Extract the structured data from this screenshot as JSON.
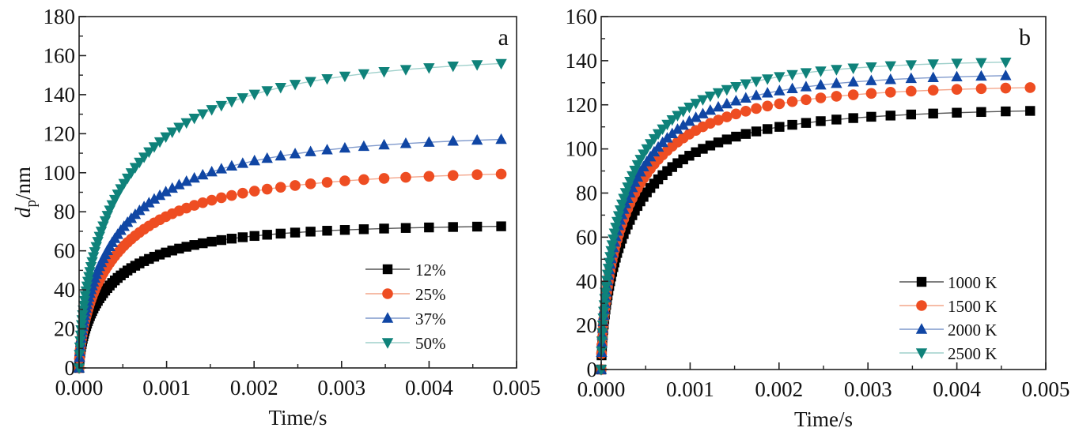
{
  "chart_data": [
    {
      "type": "line",
      "panel_label": "a",
      "title": "",
      "xlabel": "Time/s",
      "ylabel": "d_p/nm",
      "ylabel_parts": {
        "main": "d",
        "sub": "p",
        "unit": "/nm"
      },
      "xlim": [
        0,
        0.005
      ],
      "ylim": [
        0,
        180
      ],
      "xticks": [
        "0.000",
        "0.001",
        "0.002",
        "0.003",
        "0.004",
        "0.005"
      ],
      "yticks": [
        "0",
        "20",
        "40",
        "60",
        "80",
        "100",
        "120",
        "140",
        "160",
        "180"
      ],
      "grid": false,
      "legend_position": "bottom-right",
      "series": [
        {
          "name": "12%",
          "color": "#000000",
          "line_color": "#555555",
          "marker": "square",
          "plateau": 73.5,
          "tau": 0.00045,
          "t_end": 0.00495
        },
        {
          "name": "25%",
          "color": "#ee4d22",
          "line_color": "#f4a58a",
          "marker": "circle",
          "plateau": 101.5,
          "tau": 0.00055,
          "t_end": 0.00495
        },
        {
          "name": "37%",
          "color": "#1046a4",
          "line_color": "#7f99cc",
          "marker": "triangle-up",
          "plateau": 120,
          "tau": 0.00058,
          "t_end": 0.00505
        },
        {
          "name": "50%",
          "color": "#0f827a",
          "line_color": "#9fd0cb",
          "marker": "triangle-down",
          "plateau": 160.5,
          "tau": 0.00062,
          "t_end": 0.00505
        }
      ]
    },
    {
      "type": "line",
      "panel_label": "b",
      "title": "",
      "xlabel": "Time/s",
      "ylabel": "",
      "xlim": [
        0,
        0.005
      ],
      "ylim": [
        0,
        160
      ],
      "xticks": [
        "0.000",
        "0.001",
        "0.002",
        "0.003",
        "0.004",
        "0.005"
      ],
      "yticks": [
        "0",
        "20",
        "40",
        "60",
        "80",
        "100",
        "120",
        "140",
        "160"
      ],
      "grid": false,
      "legend_position": "bottom-right",
      "series": [
        {
          "name": "1000 K",
          "color": "#000000",
          "line_color": "#555555",
          "marker": "square",
          "plateau": 118.5,
          "tau": 0.00042,
          "t_end": 0.00505
        },
        {
          "name": "1500 K",
          "color": "#ee4d22",
          "line_color": "#f4a58a",
          "marker": "circle",
          "plateau": 129,
          "tau": 0.0004,
          "t_end": 0.005
        },
        {
          "name": "2000 K",
          "color": "#1046a4",
          "line_color": "#7f99cc",
          "marker": "triangle-up",
          "plateau": 134.5,
          "tau": 0.00038,
          "t_end": 0.0048
        },
        {
          "name": "2500 K",
          "color": "#0f827a",
          "line_color": "#9fd0cb",
          "marker": "triangle-down",
          "plateau": 140.5,
          "tau": 0.00036,
          "t_end": 0.0048
        }
      ]
    }
  ]
}
